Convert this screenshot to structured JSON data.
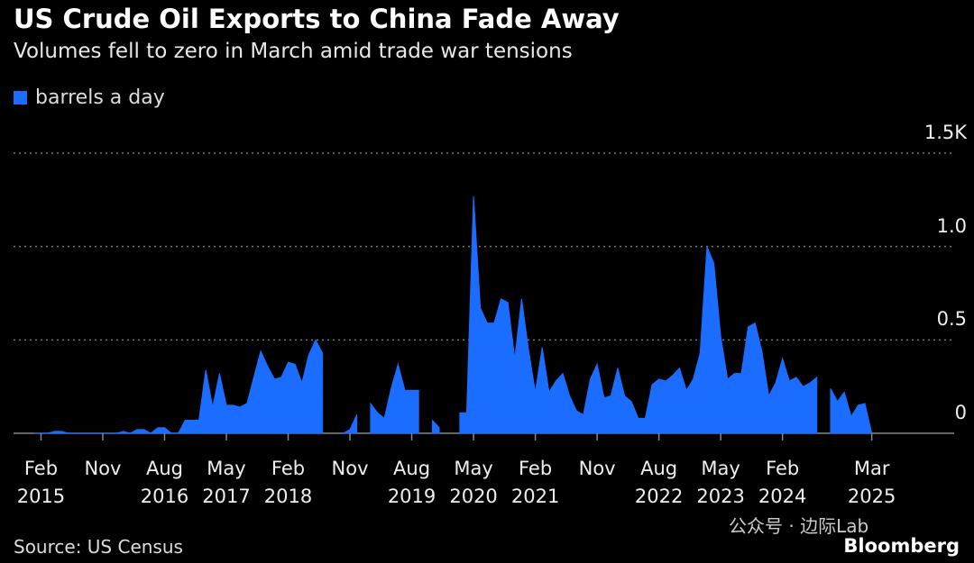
{
  "title": "US Crude Oil Exports to China Fade Away",
  "subtitle": "Volumes fell to zero in March amid trade war tensions",
  "source": "Source: US Census",
  "brand": "Bloomberg",
  "watermark": "公众号 · 边际Lab",
  "chart_data": {
    "type": "area",
    "xlim": [
      "2014-10",
      "2026-03"
    ],
    "ylim": [
      0,
      1.5
    ],
    "yticks": [
      0,
      0.5,
      {
        "value": 1,
        "label": "1.0"
      },
      {
        "value": 1.5,
        "label": "1.5K"
      }
    ],
    "xticks": [
      {
        "value": "2015-02",
        "label": "Feb\n2015"
      },
      {
        "value": "2015-11",
        "label": "Nov"
      },
      {
        "value": "2016-08",
        "label": "Aug\n2016"
      },
      {
        "value": "2017-05",
        "label": "May\n2017"
      },
      {
        "value": "2018-02",
        "label": "Feb\n2018"
      },
      {
        "value": "2018-11",
        "label": "Nov"
      },
      {
        "value": "2019-08",
        "label": "Aug\n2019"
      },
      {
        "value": "2020-05",
        "label": "May\n2020"
      },
      {
        "value": "2021-02",
        "label": "Feb\n2021"
      },
      {
        "value": "2021-11",
        "label": "Nov"
      },
      {
        "value": "2022-08",
        "label": "Aug\n2022"
      },
      {
        "value": "2023-05",
        "label": "May\n2023"
      },
      {
        "value": "2024-02",
        "label": "Feb\n2024"
      },
      {
        "value": "2025-03",
        "label": "Mar\n2025"
      }
    ],
    "grid": true,
    "x": [
      "2015-01",
      "2015-02",
      "2015-03",
      "2015-04",
      "2015-05",
      "2015-06",
      "2015-07",
      "2015-08",
      "2015-09",
      "2015-10",
      "2015-11",
      "2015-12",
      "2016-01",
      "2016-02",
      "2016-03",
      "2016-04",
      "2016-05",
      "2016-06",
      "2016-07",
      "2016-08",
      "2016-09",
      "2016-10",
      "2016-11",
      "2016-12",
      "2017-01",
      "2017-02",
      "2017-03",
      "2017-04",
      "2017-05",
      "2017-06",
      "2017-07",
      "2017-08",
      "2017-09",
      "2017-10",
      "2017-11",
      "2017-12",
      "2018-01",
      "2018-02",
      "2018-03",
      "2018-04",
      "2018-05",
      "2018-06",
      "2018-07",
      "2018-08",
      "2018-09",
      "2018-10",
      "2018-11",
      "2018-12",
      "2019-01",
      "2019-02",
      "2019-03",
      "2019-04",
      "2019-05",
      "2019-06",
      "2019-07",
      "2019-08",
      "2019-09",
      "2019-10",
      "2019-11",
      "2019-12",
      "2020-01",
      "2020-02",
      "2020-03",
      "2020-04",
      "2020-05",
      "2020-06",
      "2020-07",
      "2020-08",
      "2020-09",
      "2020-10",
      "2020-11",
      "2020-12",
      "2021-01",
      "2021-02",
      "2021-03",
      "2021-04",
      "2021-05",
      "2021-06",
      "2021-07",
      "2021-08",
      "2021-09",
      "2021-10",
      "2021-11",
      "2021-12",
      "2022-01",
      "2022-02",
      "2022-03",
      "2022-04",
      "2022-05",
      "2022-06",
      "2022-07",
      "2022-08",
      "2022-09",
      "2022-10",
      "2022-11",
      "2022-12",
      "2023-01",
      "2023-02",
      "2023-03",
      "2023-04",
      "2023-05",
      "2023-06",
      "2023-07",
      "2023-08",
      "2023-09",
      "2023-10",
      "2023-11",
      "2023-12",
      "2024-01",
      "2024-02",
      "2024-03",
      "2024-04",
      "2024-05",
      "2024-06",
      "2024-07",
      "2024-08",
      "2024-09",
      "2024-10",
      "2024-11",
      "2024-12",
      "2025-01",
      "2025-02",
      "2025-03"
    ],
    "series": [
      {
        "name": "barrels a day",
        "color": "#1a6dff",
        "values": [
          0,
          0,
          0,
          0.01,
          0.01,
          0,
          0,
          0,
          0,
          0,
          0,
          0,
          0,
          0.01,
          0,
          0.02,
          0.02,
          0,
          0.03,
          0.03,
          0,
          0,
          0.07,
          0.07,
          0.07,
          0.34,
          0.14,
          0.32,
          0.15,
          0.15,
          0.14,
          0.16,
          0.3,
          0.44,
          0.36,
          0.29,
          0.3,
          0.38,
          0.37,
          0.27,
          0.42,
          0.5,
          0.43,
          null,
          null,
          0,
          0.02,
          0.1,
          null,
          0.16,
          0.11,
          0.08,
          0.24,
          0.37,
          0.23,
          0.23,
          0.23,
          null,
          0.07,
          0.03,
          null,
          null,
          0.11,
          0.11,
          1.27,
          0.67,
          0.59,
          0.59,
          0.72,
          0.7,
          0.4,
          0.72,
          0.45,
          0.22,
          0.46,
          0.22,
          0.28,
          0.32,
          0.2,
          0.12,
          0.1,
          0.29,
          0.37,
          0.19,
          0.2,
          0.35,
          0.2,
          0.17,
          0.08,
          0.08,
          0.26,
          0.29,
          0.28,
          0.31,
          0.35,
          0.23,
          0.29,
          0.43,
          1.0,
          0.91,
          0.52,
          0.29,
          0.32,
          0.32,
          0.57,
          0.59,
          0.44,
          0.2,
          0.27,
          0.4,
          0.28,
          0.3,
          0.25,
          0.27,
          0.3,
          null,
          0.24,
          0.17,
          0.22,
          0.09,
          0.15,
          0.16,
          0
        ]
      }
    ]
  }
}
